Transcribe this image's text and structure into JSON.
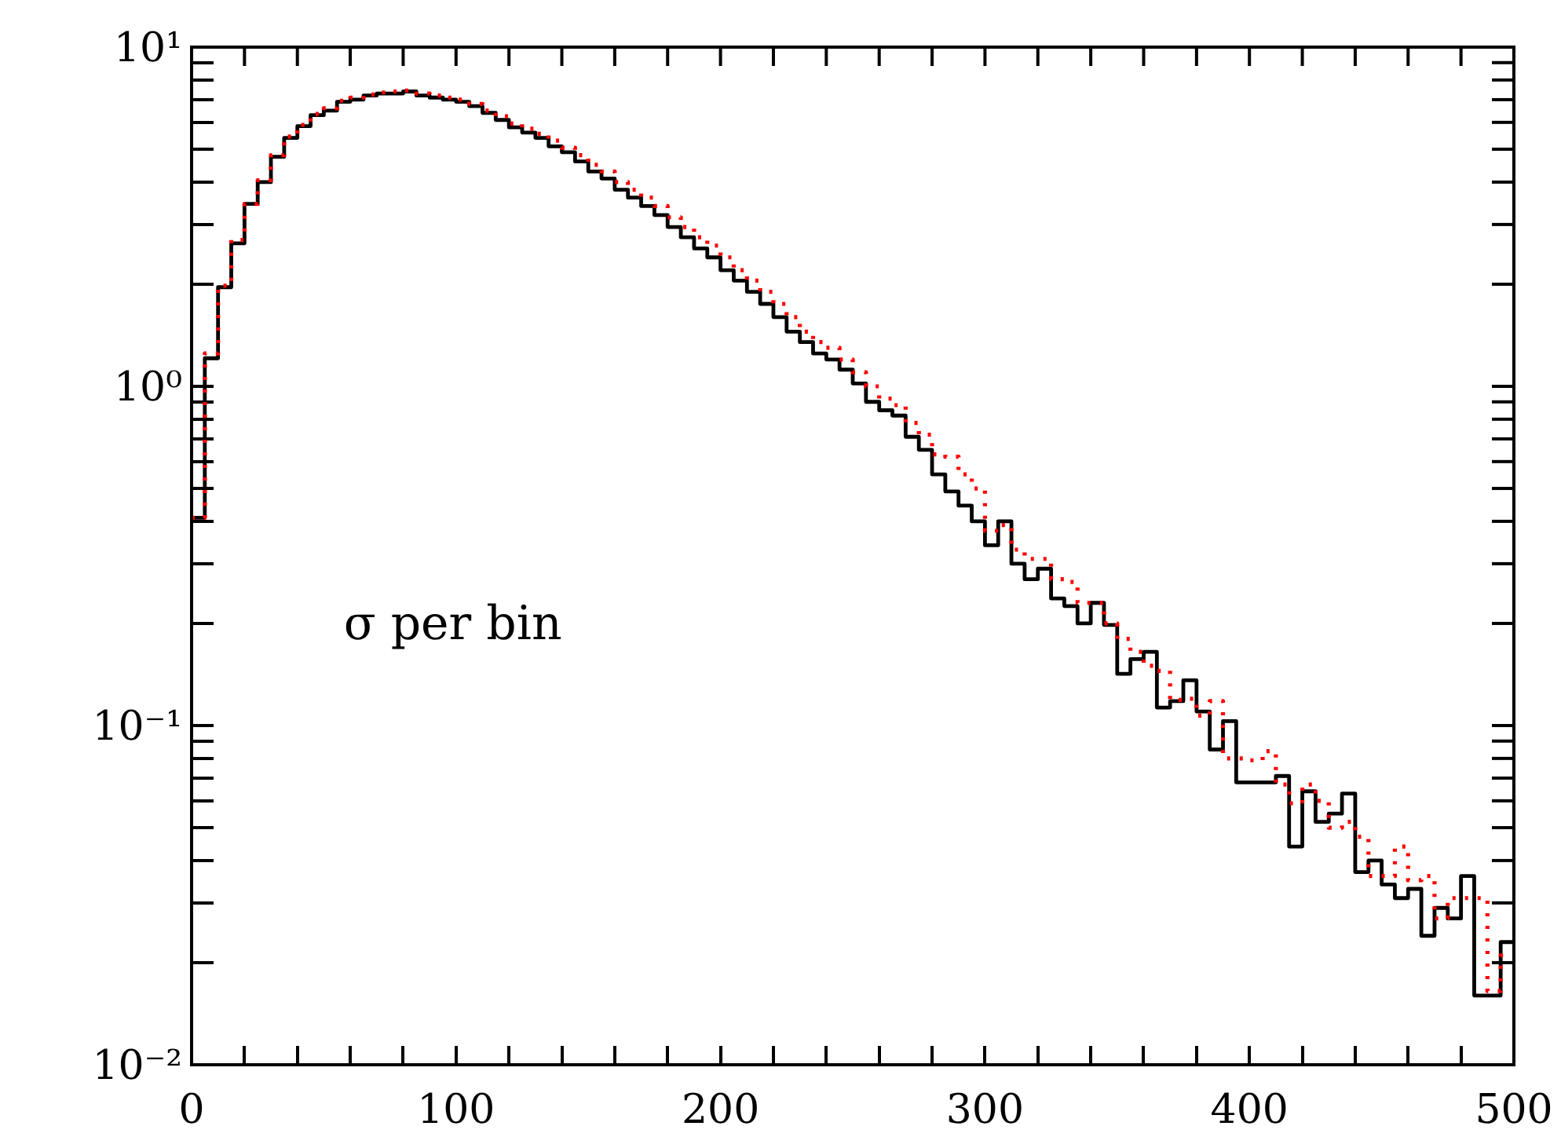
{
  "chart_data": {
    "type": "histogram",
    "bins": [
      0,
      5,
      10,
      15,
      20,
      25,
      30,
      35,
      40,
      45,
      50,
      55,
      60,
      65,
      70,
      75,
      80,
      85,
      90,
      95,
      100,
      105,
      110,
      115,
      120,
      125,
      130,
      135,
      140,
      145,
      150,
      155,
      160,
      165,
      170,
      175,
      180,
      185,
      190,
      195,
      200,
      205,
      210,
      215,
      220,
      225,
      230,
      235,
      240,
      245,
      250,
      255,
      260,
      265,
      270,
      275,
      280,
      285,
      290,
      295,
      300,
      305,
      310,
      315,
      320,
      325,
      330,
      335,
      340,
      345,
      350,
      355,
      360,
      365,
      370,
      375,
      380,
      385,
      390,
      395,
      400,
      405,
      410,
      415,
      420,
      425,
      430,
      435,
      440,
      445,
      450,
      455,
      460,
      465,
      470,
      475,
      480,
      485,
      490,
      495,
      500
    ],
    "series": [
      {
        "color": "#000000",
        "line_style": "solid",
        "values": [
          0.41,
          1.21,
          1.96,
          2.64,
          3.45,
          4.0,
          4.75,
          5.4,
          5.85,
          6.3,
          6.5,
          6.9,
          7.0,
          7.2,
          7.3,
          7.3,
          7.4,
          7.2,
          7.1,
          7.0,
          6.9,
          6.7,
          6.4,
          6.1,
          5.8,
          5.6,
          5.4,
          5.1,
          4.9,
          4.6,
          4.3,
          4.1,
          3.8,
          3.6,
          3.4,
          3.2,
          2.95,
          2.75,
          2.55,
          2.4,
          2.2,
          2.05,
          1.9,
          1.75,
          1.6,
          1.45,
          1.35,
          1.25,
          1.2,
          1.12,
          1.02,
          0.9,
          0.85,
          0.82,
          0.71,
          0.65,
          0.55,
          0.49,
          0.445,
          0.4,
          0.34,
          0.4,
          0.3,
          0.27,
          0.29,
          0.237,
          0.225,
          0.2,
          0.23,
          0.198,
          0.142,
          0.157,
          0.165,
          0.113,
          0.118,
          0.136,
          0.11,
          0.085,
          0.103,
          0.068,
          0.068,
          0.068,
          0.071,
          0.044,
          0.064,
          0.052,
          0.055,
          0.063,
          0.037,
          0.04,
          0.034,
          0.031,
          0.033,
          0.024,
          0.029,
          0.027,
          0.036,
          0.016,
          0.016,
          0.023
        ]
      },
      {
        "color": "#ff0000",
        "line_style": "dotted",
        "values": [
          0.41,
          1.25,
          1.98,
          2.7,
          3.45,
          4.05,
          4.8,
          5.45,
          5.9,
          6.35,
          6.6,
          6.95,
          7.1,
          7.25,
          7.35,
          7.4,
          7.45,
          7.3,
          7.2,
          7.1,
          7.0,
          6.8,
          6.5,
          6.25,
          5.95,
          5.75,
          5.55,
          5.3,
          5.05,
          4.8,
          4.5,
          4.3,
          4.0,
          3.8,
          3.6,
          3.4,
          3.15,
          2.95,
          2.75,
          2.6,
          2.4,
          2.2,
          2.05,
          1.9,
          1.75,
          1.6,
          1.45,
          1.35,
          1.3,
          1.2,
          1.1,
          1.0,
          0.92,
          0.88,
          0.78,
          0.72,
          0.63,
          0.62,
          0.55,
          0.5,
          0.375,
          0.39,
          0.33,
          0.31,
          0.31,
          0.27,
          0.265,
          0.23,
          0.23,
          0.2,
          0.18,
          0.165,
          0.15,
          0.145,
          0.119,
          0.12,
          0.107,
          0.118,
          0.08,
          0.08,
          0.079,
          0.084,
          0.067,
          0.059,
          0.067,
          0.06,
          0.05,
          0.052,
          0.047,
          0.036,
          0.036,
          0.044,
          0.035,
          0.036,
          0.027,
          0.031,
          0.031,
          0.031,
          0.0165,
          0.021
        ]
      }
    ],
    "xlim": [
      0,
      500
    ],
    "xticks": [
      0,
      {
        "value": 20,
        "label": null
      },
      {
        "value": 40,
        "label": null
      },
      {
        "value": 60,
        "label": null
      },
      {
        "value": 80,
        "label": null
      },
      100,
      {
        "value": 120,
        "label": null
      },
      {
        "value": 140,
        "label": null
      },
      {
        "value": 160,
        "label": null
      },
      {
        "value": 180,
        "label": null
      },
      200,
      {
        "value": 220,
        "label": null
      },
      {
        "value": 240,
        "label": null
      },
      {
        "value": 260,
        "label": null
      },
      {
        "value": 280,
        "label": null
      },
      300,
      {
        "value": 320,
        "label": null
      },
      {
        "value": 340,
        "label": null
      },
      {
        "value": 360,
        "label": null
      },
      {
        "value": 380,
        "label": null
      },
      400,
      {
        "value": 420,
        "label": null
      },
      {
        "value": 440,
        "label": null
      },
      {
        "value": 460,
        "label": null
      },
      {
        "value": 480,
        "label": null
      },
      500
    ],
    "ylim": [
      0.01,
      10
    ],
    "yticks": [
      {
        "value": 0.01,
        "label": "10⁻²"
      },
      {
        "value": 0.02,
        "label": null
      },
      {
        "value": 0.03,
        "label": null
      },
      {
        "value": 0.04,
        "label": null
      },
      {
        "value": 0.05,
        "label": null
      },
      {
        "value": 0.06,
        "label": null
      },
      {
        "value": 0.07,
        "label": null
      },
      {
        "value": 0.08,
        "label": null
      },
      {
        "value": 0.09,
        "label": null
      },
      {
        "value": 0.1,
        "label": "10⁻¹"
      },
      {
        "value": 0.2,
        "label": null
      },
      {
        "value": 0.3,
        "label": null
      },
      {
        "value": 0.4,
        "label": null
      },
      {
        "value": 0.5,
        "label": null
      },
      {
        "value": 0.6,
        "label": null
      },
      {
        "value": 0.7,
        "label": null
      },
      {
        "value": 0.8,
        "label": null
      },
      {
        "value": 0.9,
        "label": null
      },
      {
        "value": 1,
        "label": "10⁰"
      },
      {
        "value": 2,
        "label": null
      },
      {
        "value": 3,
        "label": null
      },
      {
        "value": 4,
        "label": null
      },
      {
        "value": 5,
        "label": null
      },
      {
        "value": 6,
        "label": null
      },
      {
        "value": 7,
        "label": null
      },
      {
        "value": 8,
        "label": null
      },
      {
        "value": 9,
        "label": null
      },
      {
        "value": 10,
        "label": "10¹"
      }
    ],
    "log": true,
    "grid": false,
    "legend": false,
    "annotations": [
      "σ per bin"
    ]
  }
}
